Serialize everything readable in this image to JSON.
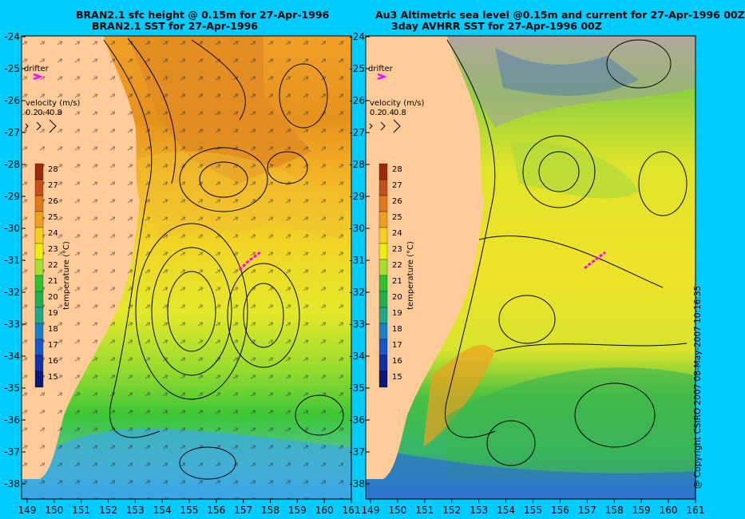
{
  "left_panel": {
    "title_line1": "BRAN2.1 sfc height @ 0.15m for 27-Apr-1996",
    "title_line2": "BRAN2.1 SST for 27-Apr-1996"
  },
  "right_panel": {
    "title_line1": "Au3 Altimetric sea level  @0.15m and current for 27-Apr-1996 00Z",
    "title_line2": "3day AVHRR SST for 27-Apr-1996 00Z"
  },
  "map": {
    "lon_ticks": [
      "149",
      "150",
      "151",
      "152",
      "153",
      "154",
      "155",
      "156",
      "157",
      "158",
      "159",
      "160",
      "161"
    ],
    "lat_ticks": [
      "-24",
      "-25",
      "-26",
      "-27",
      "-28",
      "-29",
      "-30",
      "-31",
      "-32",
      "-33",
      "-34",
      "-35",
      "-36",
      "-37",
      "-38"
    ]
  },
  "legend": {
    "drifter_label": "drifter",
    "velocity_label": "velocity (m/s)",
    "velocity_values": [
      "0.2",
      "0.4",
      "0.8"
    ],
    "colorbar_title": "temperature (°C)",
    "colorbar_ticks": [
      "28",
      "27",
      "26",
      "25",
      "24",
      "23",
      "22",
      "21",
      "20",
      "19",
      "18",
      "17",
      "16",
      "15"
    ],
    "colorbar_colors": [
      "#9e2a0a",
      "#c4501a",
      "#df7a1e",
      "#f0a020",
      "#f8cf20",
      "#ecee10",
      "#a8e030",
      "#30c030",
      "#20b050",
      "#20a888",
      "#1a80c8",
      "#1658c8",
      "#1030a8",
      "#0a1878"
    ]
  },
  "copyright": "@ Copyright CSIRO 2007  08-May-2007 10:16:35"
}
